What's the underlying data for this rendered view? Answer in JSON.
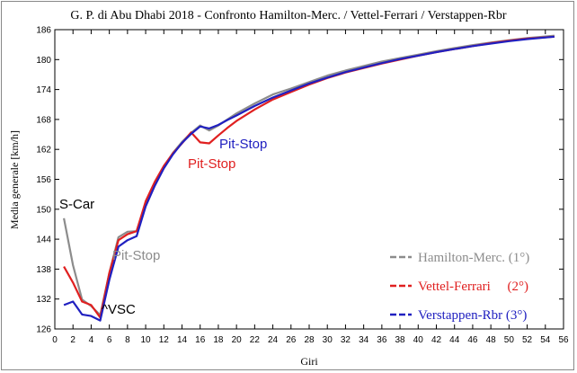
{
  "chart_data": {
    "type": "line",
    "title": "G. P. di Abu Dhabi 2018 - Confronto Hamilton-Merc. / Vettel-Ferrari / Verstappen-Rbr",
    "xlabel": "Giri",
    "ylabel": "Media generale  [km/h]",
    "xlim": [
      0,
      56
    ],
    "ylim": [
      126,
      186
    ],
    "xticks": [
      "0",
      "2",
      "4",
      "6",
      "8",
      "10",
      "12",
      "14",
      "16",
      "18",
      "20",
      "22",
      "24",
      "26",
      "28",
      "30",
      "32",
      "34",
      "36",
      "38",
      "40",
      "42",
      "44",
      "46",
      "48",
      "50",
      "52",
      "54",
      "56"
    ],
    "yticks": [
      "126",
      "132",
      "138",
      "144",
      "150",
      "156",
      "162",
      "168",
      "174",
      "180",
      "186"
    ],
    "grid": false,
    "legend_position": "bottom-right",
    "series": [
      {
        "name": "Hamilton-Merc. (1°)",
        "color": "#8c8c8c",
        "x": [
          1,
          2,
          3,
          4,
          5,
          6,
          7,
          8,
          9,
          10,
          11,
          12,
          13,
          14,
          15,
          16,
          17,
          18,
          19,
          20,
          22,
          24,
          26,
          28,
          30,
          32,
          34,
          36,
          38,
          40,
          42,
          44,
          46,
          48,
          50,
          52,
          55
        ],
        "y": [
          148.2,
          138.8,
          131.9,
          130.6,
          128.8,
          137.2,
          144.4,
          145.5,
          145.6,
          151.0,
          155.2,
          158.5,
          161.3,
          163.5,
          165.3,
          166.8,
          165.8,
          166.8,
          168.0,
          169.2,
          171.2,
          173.0,
          174.2,
          175.5,
          176.8,
          177.8,
          178.7,
          179.6,
          180.3,
          181.0,
          181.7,
          182.3,
          182.9,
          183.4,
          183.9,
          184.3,
          184.8
        ]
      },
      {
        "name": "Vettel-Ferrari     (2°)",
        "color": "#e02020",
        "x": [
          1,
          2,
          3,
          4,
          5,
          6,
          7,
          8,
          9,
          10,
          11,
          12,
          13,
          14,
          15,
          16,
          17,
          18,
          19,
          20,
          22,
          24,
          26,
          28,
          30,
          32,
          34,
          36,
          38,
          40,
          42,
          44,
          46,
          48,
          50,
          52,
          55
        ],
        "y": [
          138.5,
          135.3,
          131.5,
          130.8,
          128.3,
          137.2,
          143.8,
          145.0,
          145.6,
          151.6,
          155.5,
          158.7,
          161.2,
          163.2,
          165.4,
          163.4,
          163.2,
          164.8,
          166.3,
          167.7,
          170.0,
          172.0,
          173.5,
          175.0,
          176.3,
          177.4,
          178.3,
          179.2,
          180.0,
          180.8,
          181.5,
          182.1,
          182.7,
          183.3,
          183.8,
          184.2,
          184.6
        ]
      },
      {
        "name": "Verstappen-Rbr (3°)",
        "color": "#2020c0",
        "x": [
          1,
          2,
          3,
          4,
          5,
          6,
          7,
          8,
          9,
          10,
          11,
          12,
          13,
          14,
          15,
          16,
          17,
          18,
          19,
          20,
          22,
          24,
          26,
          28,
          30,
          32,
          34,
          36,
          38,
          40,
          42,
          44,
          46,
          48,
          50,
          52,
          55
        ],
        "y": [
          130.8,
          131.5,
          128.9,
          128.6,
          127.7,
          135.8,
          142.5,
          143.8,
          144.6,
          150.6,
          154.7,
          158.2,
          161.0,
          163.3,
          165.1,
          166.6,
          166.2,
          166.9,
          167.9,
          168.8,
          170.7,
          172.4,
          173.8,
          175.2,
          176.4,
          177.5,
          178.4,
          179.3,
          180.1,
          180.8,
          181.5,
          182.1,
          182.7,
          183.2,
          183.7,
          184.1,
          184.6
        ]
      }
    ],
    "annotations": [
      {
        "text": "S-Car",
        "color": "#000000"
      },
      {
        "text": "^VSC",
        "color": "#000000"
      },
      {
        "text": "Pit-Stop",
        "color": "#8c8c8c"
      },
      {
        "text": "Pit-Stop",
        "color": "#e02020"
      },
      {
        "text": "Pit-Stop",
        "color": "#2020c0"
      }
    ]
  }
}
